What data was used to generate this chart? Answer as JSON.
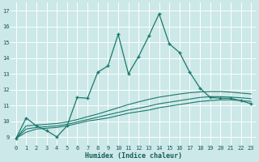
{
  "xlabel": "Humidex (Indice chaleur)",
  "bg_color": "#cce8e8",
  "grid_color": "#ffffff",
  "line_color": "#1a7a6e",
  "xlim": [
    -0.5,
    23.5
  ],
  "ylim": [
    8.5,
    17.5
  ],
  "xticks": [
    0,
    1,
    2,
    3,
    4,
    5,
    6,
    7,
    8,
    9,
    10,
    11,
    12,
    13,
    14,
    15,
    16,
    17,
    18,
    19,
    20,
    21,
    22,
    23
  ],
  "yticks": [
    9,
    10,
    11,
    12,
    13,
    14,
    15,
    16,
    17
  ],
  "main_line": {
    "x": [
      0,
      1,
      2,
      3,
      4,
      5,
      6,
      7,
      8,
      9,
      10,
      11,
      12,
      13,
      14,
      15,
      16,
      17,
      18,
      19,
      20,
      21,
      22,
      23
    ],
    "y": [
      8.9,
      10.2,
      9.7,
      9.4,
      9.0,
      9.7,
      11.5,
      11.45,
      13.1,
      13.5,
      15.5,
      13.0,
      14.1,
      15.4,
      16.8,
      14.9,
      14.35,
      13.1,
      12.1,
      11.5,
      11.45,
      11.45,
      11.3,
      11.1
    ]
  },
  "smooth_lines": [
    [
      8.9,
      9.3,
      9.5,
      9.55,
      9.6,
      9.7,
      9.85,
      10.0,
      10.1,
      10.2,
      10.35,
      10.5,
      10.6,
      10.7,
      10.85,
      10.95,
      11.05,
      11.15,
      11.25,
      11.3,
      11.35,
      11.35,
      11.3,
      11.25
    ],
    [
      8.9,
      9.5,
      9.6,
      9.65,
      9.7,
      9.8,
      9.95,
      10.1,
      10.25,
      10.4,
      10.55,
      10.7,
      10.82,
      10.95,
      11.1,
      11.2,
      11.3,
      11.4,
      11.5,
      11.55,
      11.55,
      11.52,
      11.48,
      11.42
    ],
    [
      8.9,
      9.7,
      9.75,
      9.8,
      9.85,
      9.95,
      10.1,
      10.28,
      10.45,
      10.65,
      10.85,
      11.05,
      11.22,
      11.38,
      11.52,
      11.62,
      11.72,
      11.8,
      11.85,
      11.88,
      11.88,
      11.84,
      11.78,
      11.72
    ]
  ]
}
